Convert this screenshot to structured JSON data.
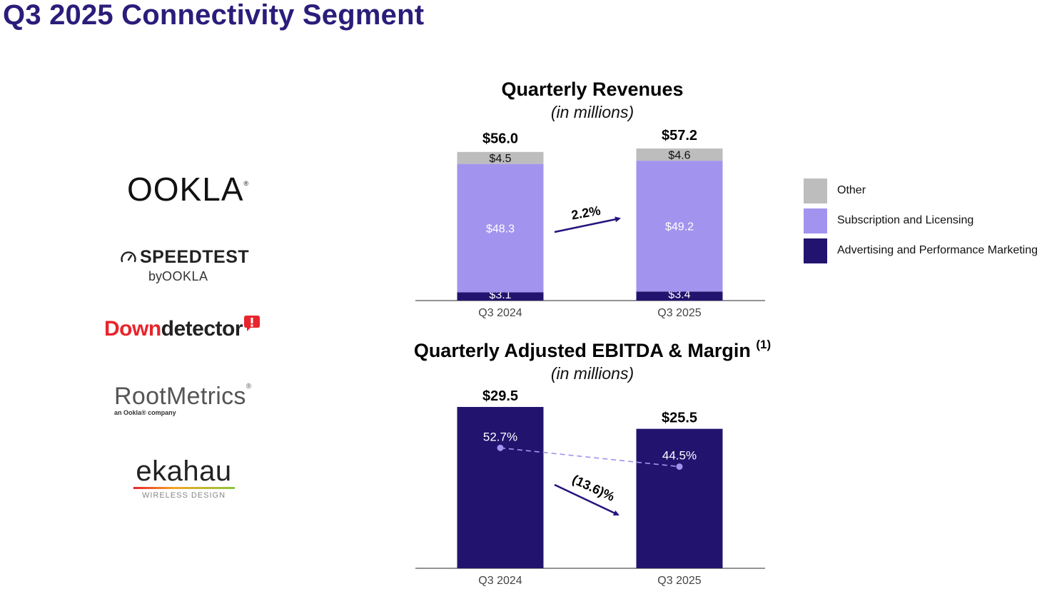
{
  "page": {
    "title": "Q3 2025 Connectivity Segment"
  },
  "logos": {
    "ookla": "OOKLA",
    "ookla_reg": "®",
    "speedtest_main": "SPEEDTEST",
    "speedtest_by": "by",
    "speedtest_ookla": "OOKLA",
    "downdetector_red": "Down",
    "downdetector_dark": "detector",
    "rootmetrics_main": "RootMetrics",
    "rootmetrics_reg": "®",
    "rootmetrics_sub": "an Ookla® company",
    "ekahau_main": "ekahau",
    "ekahau_sub": "WIRELESS DESIGN"
  },
  "colors": {
    "title": "#2a1d7a",
    "other": "#bdbdbd",
    "subscription": "#a294ee",
    "advertising": "#22146e",
    "ebitda_bar": "#22146e",
    "arrow": "#22147e",
    "margin_line": "#a294ee"
  },
  "legend": [
    {
      "label": "Other",
      "color": "#bdbdbd"
    },
    {
      "label": "Subscription and Licensing",
      "color": "#a294ee"
    },
    {
      "label": "Advertising and Performance Marketing",
      "color": "#22146e"
    }
  ],
  "chart_data": [
    {
      "type": "bar",
      "stacked": true,
      "title": "Quarterly Revenues",
      "subtitle": "(in millions)",
      "categories": [
        "Q3 2024",
        "Q3 2025"
      ],
      "series": [
        {
          "name": "Advertising and Performance Marketing",
          "values": [
            3.1,
            3.4
          ],
          "labels": [
            "$3.1",
            "$3.4"
          ]
        },
        {
          "name": "Subscription and Licensing",
          "values": [
            48.3,
            49.2
          ],
          "labels": [
            "$48.3",
            "$49.2"
          ]
        },
        {
          "name": "Other",
          "values": [
            4.5,
            4.6
          ],
          "labels": [
            "$4.5",
            "$4.6"
          ]
        }
      ],
      "totals": [
        56.0,
        57.2
      ],
      "total_labels": [
        "$56.0",
        "$57.2"
      ],
      "change_label": "2.2%",
      "ylim": [
        0,
        57.2
      ]
    },
    {
      "type": "bar",
      "title": "Quarterly Adjusted EBITDA & Margin",
      "title_note": "(1)",
      "subtitle": "(in millions)",
      "categories": [
        "Q3 2024",
        "Q3 2025"
      ],
      "values": [
        29.5,
        25.5
      ],
      "value_labels": [
        "$29.5",
        "$25.5"
      ],
      "margin": [
        52.7,
        44.5
      ],
      "margin_labels": [
        "52.7%",
        "44.5%"
      ],
      "change_label": "(13.6)%",
      "ylim": [
        0,
        29.5
      ]
    }
  ]
}
